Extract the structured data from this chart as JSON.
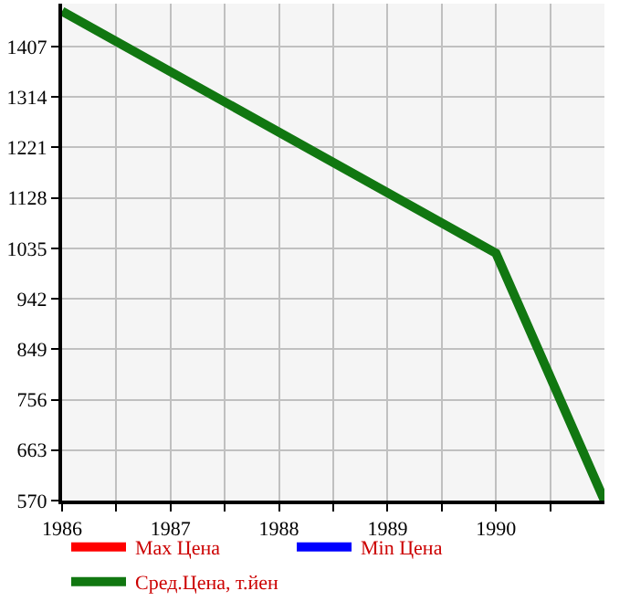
{
  "chart_data": {
    "type": "line",
    "x": [
      1986,
      1990,
      1991
    ],
    "series": [
      {
        "name": "Max Цена",
        "color": "#ff0000",
        "values": [
          null,
          null,
          null
        ]
      },
      {
        "name": "Min Цена",
        "color": "#0000ff",
        "values": [
          null,
          null,
          null
        ]
      },
      {
        "name": "Сред.Цена, т.йен",
        "color": "#117711",
        "values": [
          1472,
          1026,
          570
        ]
      }
    ],
    "xlim": [
      1986,
      1991
    ],
    "xticks": [
      1986,
      {
        "value": 1986.5,
        "label": null
      },
      1987,
      {
        "value": 1987.5,
        "label": null
      },
      1988,
      {
        "value": 1988.5,
        "label": null
      },
      1989,
      {
        "value": 1989.5,
        "label": null
      },
      1990,
      {
        "value": 1990.5,
        "label": null
      }
    ],
    "ylim": [
      570,
      1486
    ],
    "yticks": [
      570,
      663,
      756,
      849,
      942,
      1035,
      1128,
      1221,
      1314,
      1407
    ],
    "grid": true,
    "legend": "bottom",
    "marker": "none",
    "line_style": "solid"
  }
}
